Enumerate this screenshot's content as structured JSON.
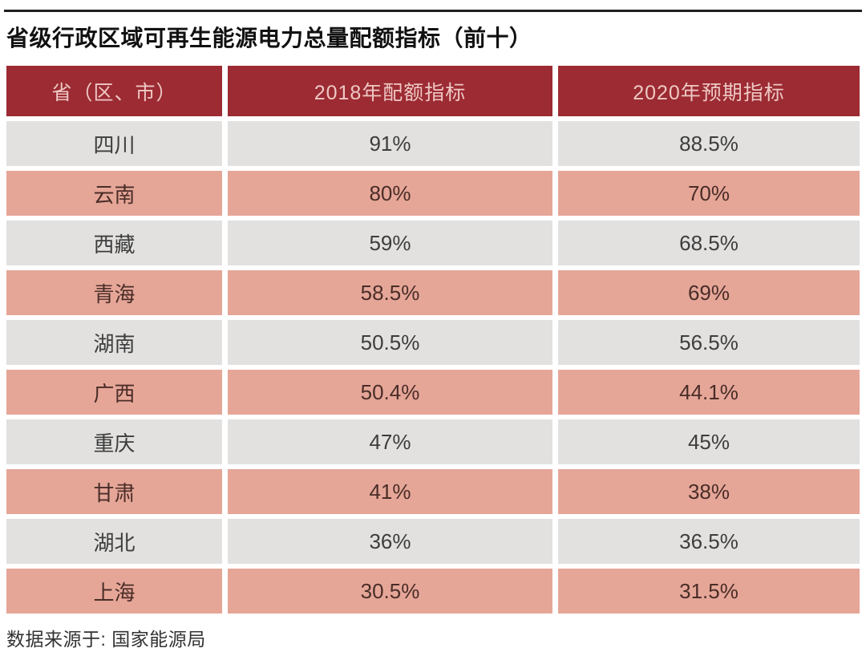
{
  "title": "省级行政区域可再生能源电力总量配额指标（前十）",
  "source_note": "数据来源于: 国家能源局",
  "colors": {
    "header_bg": "#9c2b33",
    "header_text": "#eec8c4",
    "row_gray_bg": "#e2e1e0",
    "row_pink_bg": "#e5a698",
    "row_gray_text": "#3d3d3d",
    "row_pink_text": "#4a2d27",
    "title_text": "#111111",
    "top_rule": "#1f1f1f"
  },
  "chart_data": {
    "type": "table",
    "title": "省级行政区域可再生能源电力总量配额指标（前十）",
    "columns": [
      "省（区、市）",
      "2018年配额指标",
      "2020年预期指标"
    ],
    "rows": [
      [
        "四川",
        "91%",
        "88.5%"
      ],
      [
        "云南",
        "80%",
        "70%"
      ],
      [
        "西藏",
        "59%",
        "68.5%"
      ],
      [
        "青海",
        "58.5%",
        "69%"
      ],
      [
        "湖南",
        "50.5%",
        "56.5%"
      ],
      [
        "广西",
        "50.4%",
        "44.1%"
      ],
      [
        "重庆",
        "47%",
        "45%"
      ],
      [
        "甘肃",
        "41%",
        "38%"
      ],
      [
        "湖北",
        "36%",
        "36.5%"
      ],
      [
        "上海",
        "30.5%",
        "31.5%"
      ]
    ],
    "source": "国家能源局",
    "layout": {
      "row_striping": [
        "gray",
        "pink"
      ],
      "values_2018_pct": [
        91,
        80,
        59,
        58.5,
        50.5,
        50.4,
        47,
        41,
        36,
        30.5
      ],
      "values_2020_pct": [
        88.5,
        70,
        68.5,
        69,
        56.5,
        44.1,
        45,
        38,
        36.5,
        31.5
      ]
    }
  }
}
